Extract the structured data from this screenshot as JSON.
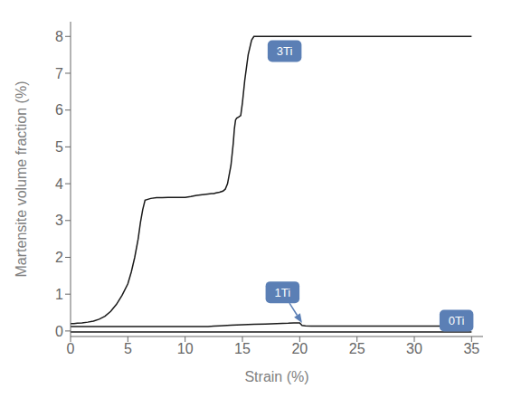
{
  "chart_data": {
    "type": "line",
    "xlabel": "Strain (%)",
    "ylabel": "Martensite volume fraction (%)",
    "xlim": [
      0,
      36
    ],
    "ylim": [
      -0.15,
      8.4
    ],
    "xticks": [
      0,
      5,
      10,
      15,
      20,
      25,
      30,
      35
    ],
    "yticks": [
      0,
      1,
      2,
      3,
      4,
      5,
      6,
      7,
      8
    ],
    "series": [
      {
        "name": "3Ti",
        "color": "#1a1a1a",
        "x": [
          0,
          0.3,
          0.6,
          1.0,
          1.5,
          2.0,
          2.5,
          3.0,
          3.5,
          4.0,
          4.5,
          5.0,
          5.3,
          5.6,
          5.9,
          6.1,
          6.3,
          6.5,
          7.0,
          7.5,
          8.0,
          8.5,
          9.0,
          9.5,
          10.0,
          10.5,
          11.0,
          11.5,
          12.0,
          12.3,
          12.5,
          12.7,
          13.0,
          13.3,
          13.5,
          13.7,
          14.0,
          14.2,
          14.3,
          14.4,
          14.5,
          14.6,
          14.7,
          14.75,
          14.8,
          14.85,
          15.0,
          15.2,
          15.5,
          15.8,
          16.0,
          16.2,
          16.3,
          16.4,
          16.5,
          17.0,
          18.0,
          19.0,
          20.0,
          25.0,
          35.0
        ],
        "values": [
          0.2,
          0.2,
          0.21,
          0.22,
          0.24,
          0.27,
          0.32,
          0.4,
          0.53,
          0.72,
          0.97,
          1.28,
          1.6,
          2.0,
          2.5,
          2.95,
          3.3,
          3.55,
          3.6,
          3.62,
          3.62,
          3.63,
          3.63,
          3.63,
          3.63,
          3.65,
          3.68,
          3.7,
          3.72,
          3.73,
          3.73,
          3.75,
          3.77,
          3.8,
          3.85,
          4.0,
          4.5,
          5.1,
          5.5,
          5.73,
          5.78,
          5.8,
          5.82,
          5.83,
          5.84,
          5.85,
          6.2,
          6.8,
          7.5,
          7.9,
          8.0,
          8.0,
          8.0,
          8.0,
          8.0,
          8.0,
          8.0,
          8.0,
          8.0,
          8.0,
          8.0
        ]
      },
      {
        "name": "1Ti",
        "color": "#1a1a1a",
        "x": [
          0,
          0.5,
          1,
          2,
          3,
          4,
          5,
          6,
          7,
          8,
          9,
          10,
          11,
          12,
          12.5,
          13,
          14,
          15,
          16,
          17,
          18,
          19,
          19.5,
          19.8,
          20.0,
          20.2,
          20.5,
          21.0,
          22.0,
          23.0,
          25.0,
          30.0,
          35.0
        ],
        "values": [
          0.12,
          0.12,
          0.12,
          0.12,
          0.12,
          0.12,
          0.12,
          0.12,
          0.12,
          0.12,
          0.12,
          0.12,
          0.12,
          0.12,
          0.13,
          0.14,
          0.16,
          0.17,
          0.18,
          0.19,
          0.2,
          0.21,
          0.22,
          0.22,
          0.22,
          0.15,
          0.14,
          0.13,
          0.13,
          0.13,
          0.13,
          0.13,
          0.13
        ]
      },
      {
        "name": "0Ti",
        "color": "#1a1a1a",
        "x": [
          0,
          1,
          2,
          3,
          4,
          5,
          10,
          15,
          20,
          25,
          30,
          35
        ],
        "values": [
          -0.03,
          -0.03,
          -0.03,
          -0.03,
          -0.03,
          -0.03,
          -0.03,
          -0.03,
          -0.03,
          -0.03,
          -0.03,
          -0.03
        ]
      }
    ],
    "annotations": [
      {
        "text": "3Ti",
        "x": 17.2,
        "y": 7.6,
        "color": "#5b7fb5",
        "text_color": "#ffffff"
      },
      {
        "text": "1Ti",
        "x": 18.5,
        "y": 1.05,
        "arrow_x": 20.2,
        "arrow_y": 0.22,
        "color": "#5b7fb5",
        "text_color": "#ffffff"
      },
      {
        "text": "0Ti",
        "x": 32.2,
        "y": 0.28,
        "color": "#5b7fb5",
        "text_color": "#ffffff"
      }
    ]
  }
}
